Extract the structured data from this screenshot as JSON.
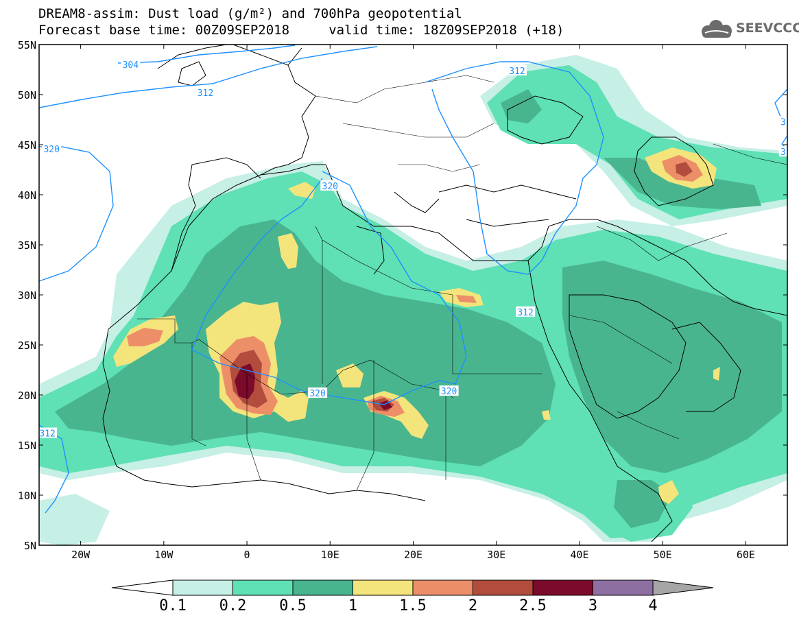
{
  "title_line1": "DREAM8-assim: Dust load (g/m²) and 700hPa geopotential",
  "title_line2": "Forecast base time: 00Z09SEP2018     valid time: 18Z09SEP2018 (+18)",
  "logo_text": "SEEVCCC",
  "axes": {
    "lat_labels": [
      "55N",
      "50N",
      "45N",
      "40N",
      "35N",
      "30N",
      "25N",
      "20N",
      "15N",
      "10N",
      "5N"
    ],
    "lon_labels": [
      "20W",
      "10W",
      "0",
      "10E",
      "20E",
      "30E",
      "40E",
      "50E",
      "60E"
    ],
    "lon_range": [
      -25,
      65
    ],
    "lat_range": [
      5,
      55
    ]
  },
  "legend": {
    "labels": [
      "0.1",
      "0.2",
      "0.5",
      "1",
      "1.5",
      "2",
      "2.5",
      "3",
      "4"
    ],
    "colors": [
      "#c6efe6",
      "#5fe0b5",
      "#49b58f",
      "#f4e47c",
      "#ec8f68",
      "#b24c3d",
      "#7c0a2a",
      "#8e6fa2"
    ],
    "below_color": "#ffffff",
    "above_color": "#a6a6a6"
  },
  "contour_labels": [
    {
      "text": "304",
      "lon": -14,
      "lat": 53
    },
    {
      "text": "312",
      "lon": -5,
      "lat": 50.2
    },
    {
      "text": "320",
      "lon": -23.5,
      "lat": 44.6
    },
    {
      "text": "320",
      "lon": 10,
      "lat": 40.9
    },
    {
      "text": "312",
      "lon": 32.5,
      "lat": 52.4
    },
    {
      "text": "312",
      "lon": 33.5,
      "lat": 28.3
    },
    {
      "text": "320",
      "lon": 8.5,
      "lat": 20.2
    },
    {
      "text": "320",
      "lon": 24.3,
      "lat": 20.4
    },
    {
      "text": "312",
      "lon": -24,
      "lat": 16.2
    },
    {
      "text": "3",
      "lon": 64.5,
      "lat": 47.3
    },
    {
      "text": "3",
      "lon": 64.5,
      "lat": 44.3
    }
  ]
}
